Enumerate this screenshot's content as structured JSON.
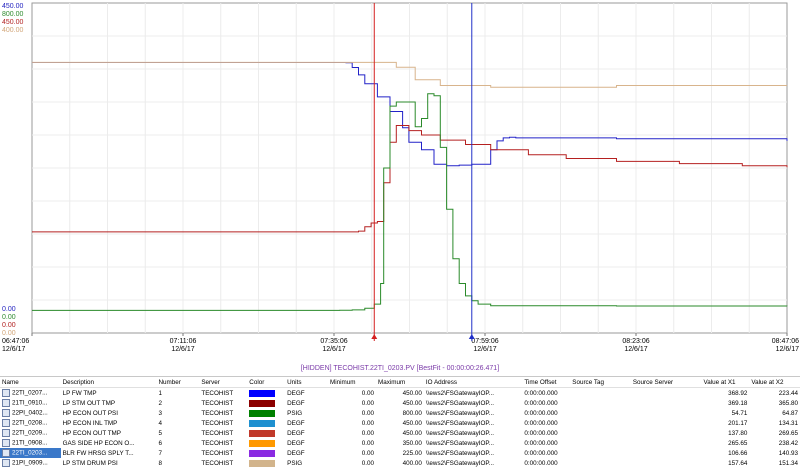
{
  "axes": {
    "stacked_labels": [
      {
        "max": "450.00",
        "min": "0.00",
        "color": "#1f1fbf"
      },
      {
        "max": "800.00",
        "min": "0.00",
        "color": "#2e8b2e"
      },
      {
        "max": "450.00",
        "min": "0.00",
        "color": "#b22222"
      },
      {
        "max": "400.00",
        "min": "0.00",
        "color": "#d2a679"
      }
    ],
    "time_ticks": [
      {
        "time": "06:47:06",
        "date": "12/6/17"
      },
      {
        "time": "07:11:06",
        "date": "12/6/17"
      },
      {
        "time": "07:35:06",
        "date": "12/6/17"
      },
      {
        "time": "07:59:06",
        "date": "12/6/17"
      },
      {
        "time": "08:23:06",
        "date": "12/6/17"
      },
      {
        "time": "08:47:06",
        "date": "12/6/17"
      }
    ]
  },
  "chart_data": {
    "type": "line",
    "x_start": "06:47:06",
    "x_end": "08:47:06",
    "grid": true,
    "cursors": [
      {
        "label": "X1",
        "time": "07:41:30",
        "color": "#d42020"
      },
      {
        "label": "X2",
        "time": "07:57:00",
        "color": "#2030c8"
      }
    ],
    "series": [
      {
        "name": "22TI_0203...",
        "color": "#2222c8",
        "ylim": [
          0,
          450
        ],
        "x": [
          "06:47:06",
          "07:37:00",
          "07:38:00",
          "07:39:00",
          "07:40:00",
          "07:42:00",
          "07:44:00",
          "07:46:00",
          "07:47:00",
          "07:49:00",
          "07:51:00",
          "07:53:00",
          "07:54:00",
          "07:55:00",
          "07:57:00",
          "08:00:00",
          "08:01:00",
          "08:02:00",
          "08:03:00",
          "08:04:00",
          "08:20:00",
          "08:47:06"
        ],
        "y": [
          368.9,
          368.5,
          362,
          352,
          340,
          322,
          302,
          280,
          260,
          250,
          230,
          228,
          228,
          229,
          230,
          250,
          262,
          266,
          267,
          266,
          265,
          262
        ]
      },
      {
        "name": "21PI_0909...",
        "color": "#d8b48c",
        "ylim": [
          0,
          400
        ],
        "x": [
          "06:47:06",
          "07:40:00",
          "07:41:00",
          "07:42:00",
          "07:45:00",
          "07:48:00",
          "07:52:00",
          "08:00:00",
          "08:20:00",
          "08:47:06"
        ],
        "y": [
          328,
          328,
          328,
          328,
          322,
          307,
          300,
          298,
          300,
          300
        ]
      },
      {
        "name": "22TI_0209...",
        "color": "#b52020",
        "ylim": [
          0,
          450
        ],
        "x": [
          "06:47:06",
          "07:37:00",
          "07:39:00",
          "07:40:00",
          "07:41:00",
          "07:42:00",
          "07:43:00",
          "07:44:00",
          "07:45:00",
          "07:47:00",
          "07:49:00",
          "07:52:00",
          "07:56:00",
          "08:00:00",
          "08:06:00",
          "08:12:00",
          "08:20:00",
          "08:30:00",
          "08:40:00",
          "08:47:06"
        ],
        "y": [
          137.8,
          137.8,
          139,
          145,
          150,
          152,
          205,
          260,
          283,
          276,
          270,
          263,
          257,
          250,
          243,
          238,
          234,
          231,
          228,
          226
        ]
      },
      {
        "name": "21TI_0908...",
        "color": "#2a8a2a",
        "ylim": [
          0,
          800
        ],
        "x": [
          "06:47:06",
          "07:36:00",
          "07:38:00",
          "07:40:00",
          "07:41:30",
          "07:42:30",
          "07:43:00",
          "07:44:00",
          "07:45:00",
          "07:46:00",
          "07:48:00",
          "07:49:00",
          "07:50:00",
          "07:51:00",
          "07:52:00",
          "07:53:00",
          "07:54:00",
          "07:55:00",
          "07:56:00",
          "07:57:00",
          "07:58:00",
          "08:00:00",
          "08:20:00",
          "08:47:06"
        ],
        "y": [
          54.7,
          55,
          56,
          60,
          70,
          120,
          400,
          550,
          560,
          560,
          500,
          520,
          580,
          575,
          450,
          300,
          180,
          120,
          90,
          78,
          70,
          66,
          65.5,
          64.9
        ]
      }
    ]
  },
  "status_bar": "[HIDDEN] TECOHIST.22TI_0203.PV [BestFit - 00:00:00:26.471]",
  "table": {
    "headers": [
      "Name",
      "Description",
      "Number",
      "Server",
      "Color",
      "Units",
      "Minimum",
      "Maximum",
      "IO Address",
      "Time Offset",
      "Source Tag",
      "Source Server",
      "Value at X1",
      "Value at X2"
    ],
    "rows": [
      {
        "name": "22TI_0207...",
        "description": "LP FW TMP",
        "number": "1",
        "server": "TECOHIST",
        "color": "#0000ff",
        "units": "DEGF",
        "minimum": "0.00",
        "maximum": "450.00",
        "io": "\\\\ews2\\FSGatewayIOP...",
        "offset": "0:00:00.000",
        "source_tag": "",
        "source_server": "",
        "x1": "368.92",
        "x2": "223.44",
        "selected": false
      },
      {
        "name": "21TI_0910...",
        "description": "LP STM OUT TMP",
        "number": "2",
        "server": "TECOHIST",
        "color": "#8b0000",
        "units": "DEGF",
        "minimum": "0.00",
        "maximum": "450.00",
        "io": "\\\\ews2\\FSGatewayIOP...",
        "offset": "0:00:00.000",
        "source_tag": "",
        "source_server": "",
        "x1": "369.18",
        "x2": "365.80",
        "selected": false
      },
      {
        "name": "22PI_0402...",
        "description": "HP ECON OUT PSI",
        "number": "3",
        "server": "TECOHIST",
        "color": "#008000",
        "units": "PSIG",
        "minimum": "0.00",
        "maximum": "800.00",
        "io": "\\\\ews2\\FSGatewayIOP...",
        "offset": "0:00:00.000",
        "source_tag": "",
        "source_server": "",
        "x1": "54.71",
        "x2": "64.87",
        "selected": false
      },
      {
        "name": "22TI_0208...",
        "description": "HP ECON INL TMP",
        "number": "4",
        "server": "TECOHIST",
        "color": "#1e90d0",
        "units": "DEGF",
        "minimum": "0.00",
        "maximum": "450.00",
        "io": "\\\\ews2\\FSGatewayIOP...",
        "offset": "0:00:00.000",
        "source_tag": "",
        "source_server": "",
        "x1": "201.17",
        "x2": "134.31",
        "selected": false
      },
      {
        "name": "22TI_0209...",
        "description": "HP ECON OUT TMP",
        "number": "5",
        "server": "TECOHIST",
        "color": "#c0392b",
        "units": "DEGF",
        "minimum": "0.00",
        "maximum": "450.00",
        "io": "\\\\ews2\\FSGatewayIOP...",
        "offset": "0:00:00.000",
        "source_tag": "",
        "source_server": "",
        "x1": "137.80",
        "x2": "269.65",
        "selected": false
      },
      {
        "name": "21TI_0908...",
        "description": "GAS SIDE HP ECON O...",
        "number": "6",
        "server": "TECOHIST",
        "color": "#ff9900",
        "units": "DEGF",
        "minimum": "0.00",
        "maximum": "350.00",
        "io": "\\\\ews2\\FSGatewayIOP...",
        "offset": "0:00:00.000",
        "source_tag": "",
        "source_server": "",
        "x1": "265.65",
        "x2": "238.42",
        "selected": false
      },
      {
        "name": "22TI_0203...",
        "description": "BLR FW HRSG SPLY T...",
        "number": "7",
        "server": "TECOHIST",
        "color": "#8a2be2",
        "units": "DEGF",
        "minimum": "0.00",
        "maximum": "225.00",
        "io": "\\\\ews2\\FSGatewayIOP...",
        "offset": "0:00:00.000",
        "source_tag": "",
        "source_server": "",
        "x1": "106.66",
        "x2": "140.93",
        "selected": true
      },
      {
        "name": "21PI_0909...",
        "description": "LP STM DRUM PSI",
        "number": "8",
        "server": "TECOHIST",
        "color": "#d2b48c",
        "units": "PSIG",
        "minimum": "0.00",
        "maximum": "400.00",
        "io": "\\\\ews2\\FSGatewayIOP...",
        "offset": "0:00:00.000",
        "source_tag": "",
        "source_server": "",
        "x1": "157.64",
        "x2": "151.34",
        "selected": false
      }
    ]
  }
}
